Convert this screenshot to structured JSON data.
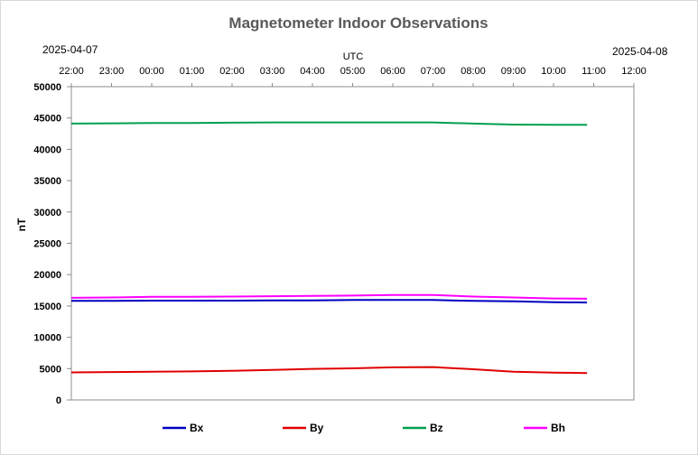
{
  "chart_data": {
    "type": "line",
    "title": "Magnetometer Indoor Observations",
    "date_left": "2025-04-07",
    "date_right": "2025-04-08",
    "top_axis_label": "UTC",
    "ylabel": "nT",
    "ylim": [
      0,
      50000
    ],
    "y_ticks": [
      "0",
      "5000",
      "10000",
      "15000",
      "20000",
      "25000",
      "30000",
      "35000",
      "40000",
      "45000",
      "50000"
    ],
    "x_ticks": [
      "22:00",
      "23:00",
      "00:00",
      "01:00",
      "02:00",
      "03:00",
      "04:00",
      "05:00",
      "06:00",
      "07:00",
      "08:00",
      "09:00",
      "10:00",
      "11:00",
      "12:00"
    ],
    "grid": false,
    "legend_position": "bottom",
    "series": [
      {
        "name": "Bx",
        "color": "#0000c0",
        "x": [
          "22:00",
          "23:00",
          "00:00",
          "01:00",
          "02:00",
          "03:00",
          "04:00",
          "05:00",
          "06:00",
          "07:00",
          "08:00",
          "09:00",
          "10:00",
          "10:50"
        ],
        "y": [
          15800,
          15800,
          15850,
          15850,
          15850,
          15900,
          15900,
          15950,
          15950,
          15950,
          15800,
          15750,
          15600,
          15550
        ]
      },
      {
        "name": "By",
        "color": "#e00000",
        "x": [
          "22:00",
          "23:00",
          "00:00",
          "01:00",
          "02:00",
          "03:00",
          "04:00",
          "05:00",
          "06:00",
          "07:00",
          "08:00",
          "09:00",
          "10:00",
          "10:50"
        ],
        "y": [
          4400,
          4450,
          4500,
          4550,
          4650,
          4800,
          4950,
          5050,
          5200,
          5250,
          4900,
          4500,
          4350,
          4300
        ]
      },
      {
        "name": "Bz",
        "color": "#00a050",
        "x": [
          "22:00",
          "23:00",
          "00:00",
          "01:00",
          "02:00",
          "03:00",
          "04:00",
          "05:00",
          "06:00",
          "07:00",
          "08:00",
          "09:00",
          "10:00",
          "10:50"
        ],
        "y": [
          44100,
          44150,
          44200,
          44200,
          44250,
          44300,
          44300,
          44300,
          44300,
          44300,
          44100,
          43950,
          43900,
          43900
        ]
      },
      {
        "name": "Bh",
        "color": "#ff00ff",
        "x": [
          "22:00",
          "23:00",
          "00:00",
          "01:00",
          "02:00",
          "03:00",
          "04:00",
          "05:00",
          "06:00",
          "07:00",
          "08:00",
          "09:00",
          "10:00",
          "10:50"
        ],
        "y": [
          16300,
          16350,
          16450,
          16450,
          16500,
          16550,
          16600,
          16650,
          16750,
          16750,
          16500,
          16350,
          16200,
          16150
        ]
      }
    ]
  }
}
